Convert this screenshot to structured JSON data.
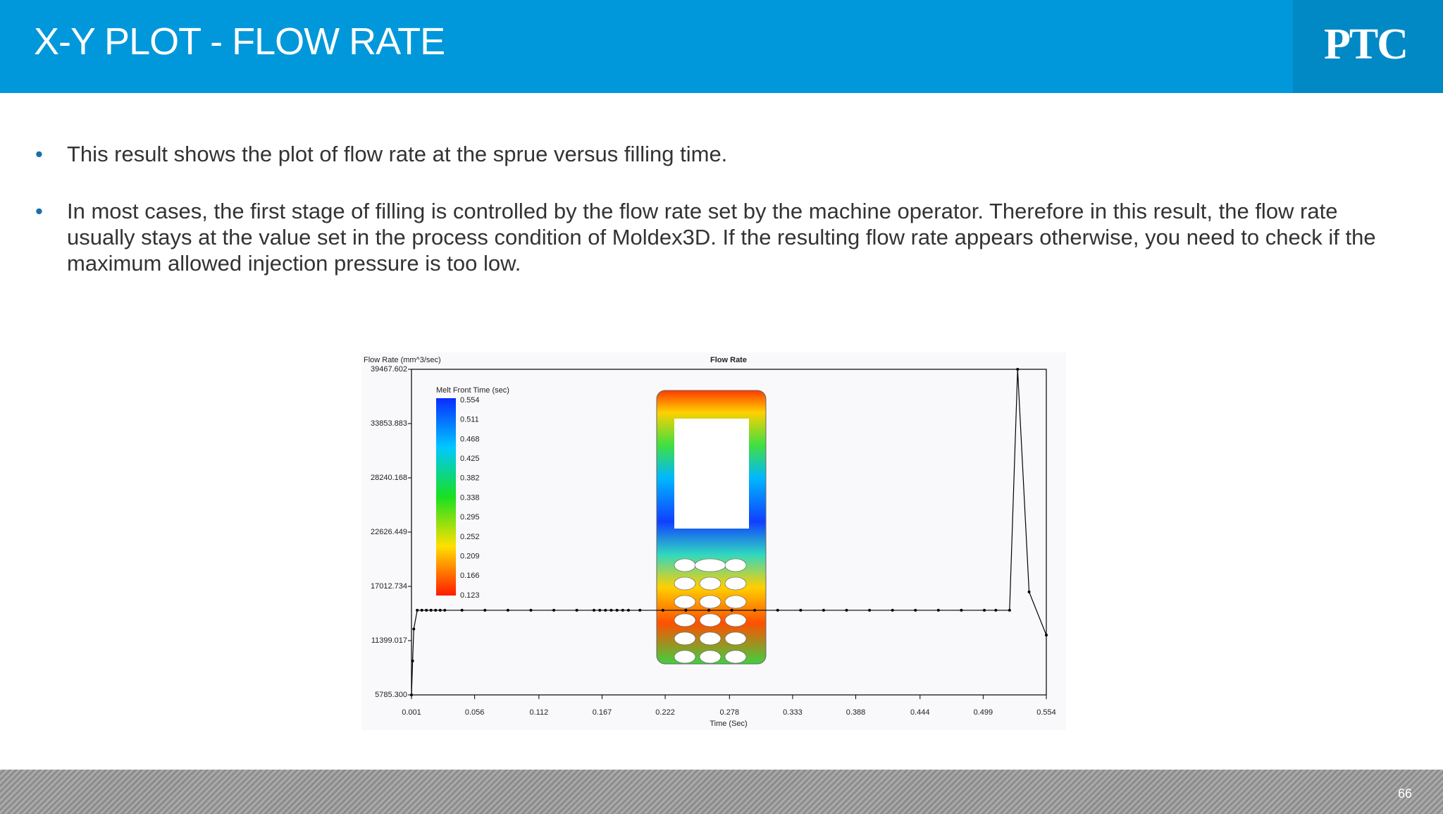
{
  "header": {
    "title": "X-Y PLOT - FLOW RATE",
    "logo": "PTC"
  },
  "bullets": [
    "This result shows the plot of flow rate at the sprue versus filling time.",
    "In most cases, the first stage of filling is controlled by the flow rate set by the machine operator. Therefore in this result, the flow rate usually stays at the value set in the process condition of Moldex3D. If the resulting flow rate appears otherwise, you need to check if the maximum allowed injection pressure is too low."
  ],
  "chart_data": {
    "type": "line",
    "title": "Flow Rate",
    "y_label": "Flow Rate (mm^3/sec)",
    "x_label": "Time (Sec)",
    "color": "#000000",
    "xlim": [
      0.001,
      0.554
    ],
    "xticks": [
      0.001,
      0.056,
      0.112,
      0.167,
      0.222,
      0.278,
      0.333,
      0.388,
      0.444,
      0.499,
      0.554
    ],
    "ylim": [
      5785.3,
      39467.602
    ],
    "yticks": [
      {
        "value": 5785.3,
        "label": "5785.300"
      },
      11399.017,
      17012.734,
      22626.449,
      28240.168,
      33853.883,
      39467.602
    ],
    "x": [
      0.001,
      0.002,
      0.003,
      0.006,
      0.01,
      0.014,
      0.018,
      0.022,
      0.026,
      0.03,
      0.045,
      0.065,
      0.085,
      0.105,
      0.125,
      0.145,
      0.16,
      0.165,
      0.17,
      0.175,
      0.18,
      0.185,
      0.19,
      0.2,
      0.22,
      0.24,
      0.26,
      0.28,
      0.3,
      0.32,
      0.34,
      0.36,
      0.38,
      0.4,
      0.42,
      0.44,
      0.46,
      0.48,
      0.5,
      0.51,
      0.522,
      0.529,
      0.539,
      0.554
    ],
    "values": [
      5785.3,
      9300,
      12600,
      14540,
      14540,
      14540,
      14540,
      14540,
      14540,
      14540,
      14540,
      14540,
      14540,
      14540,
      14540,
      14540,
      14540,
      14540,
      14540,
      14540,
      14540,
      14540,
      14540,
      14540,
      14540,
      14540,
      14540,
      14540,
      14540,
      14540,
      14540,
      14540,
      14540,
      14540,
      14540,
      14540,
      14540,
      14540,
      14540,
      14540,
      14540,
      39467.602,
      16440,
      11970
    ],
    "colorbar": {
      "title": "Melt Front Time (sec)",
      "labels": [
        0.554,
        0.511,
        0.468,
        0.425,
        0.382,
        0.338,
        0.295,
        0.252,
        0.209,
        0.166,
        0.123
      ]
    }
  },
  "page_number": "66"
}
